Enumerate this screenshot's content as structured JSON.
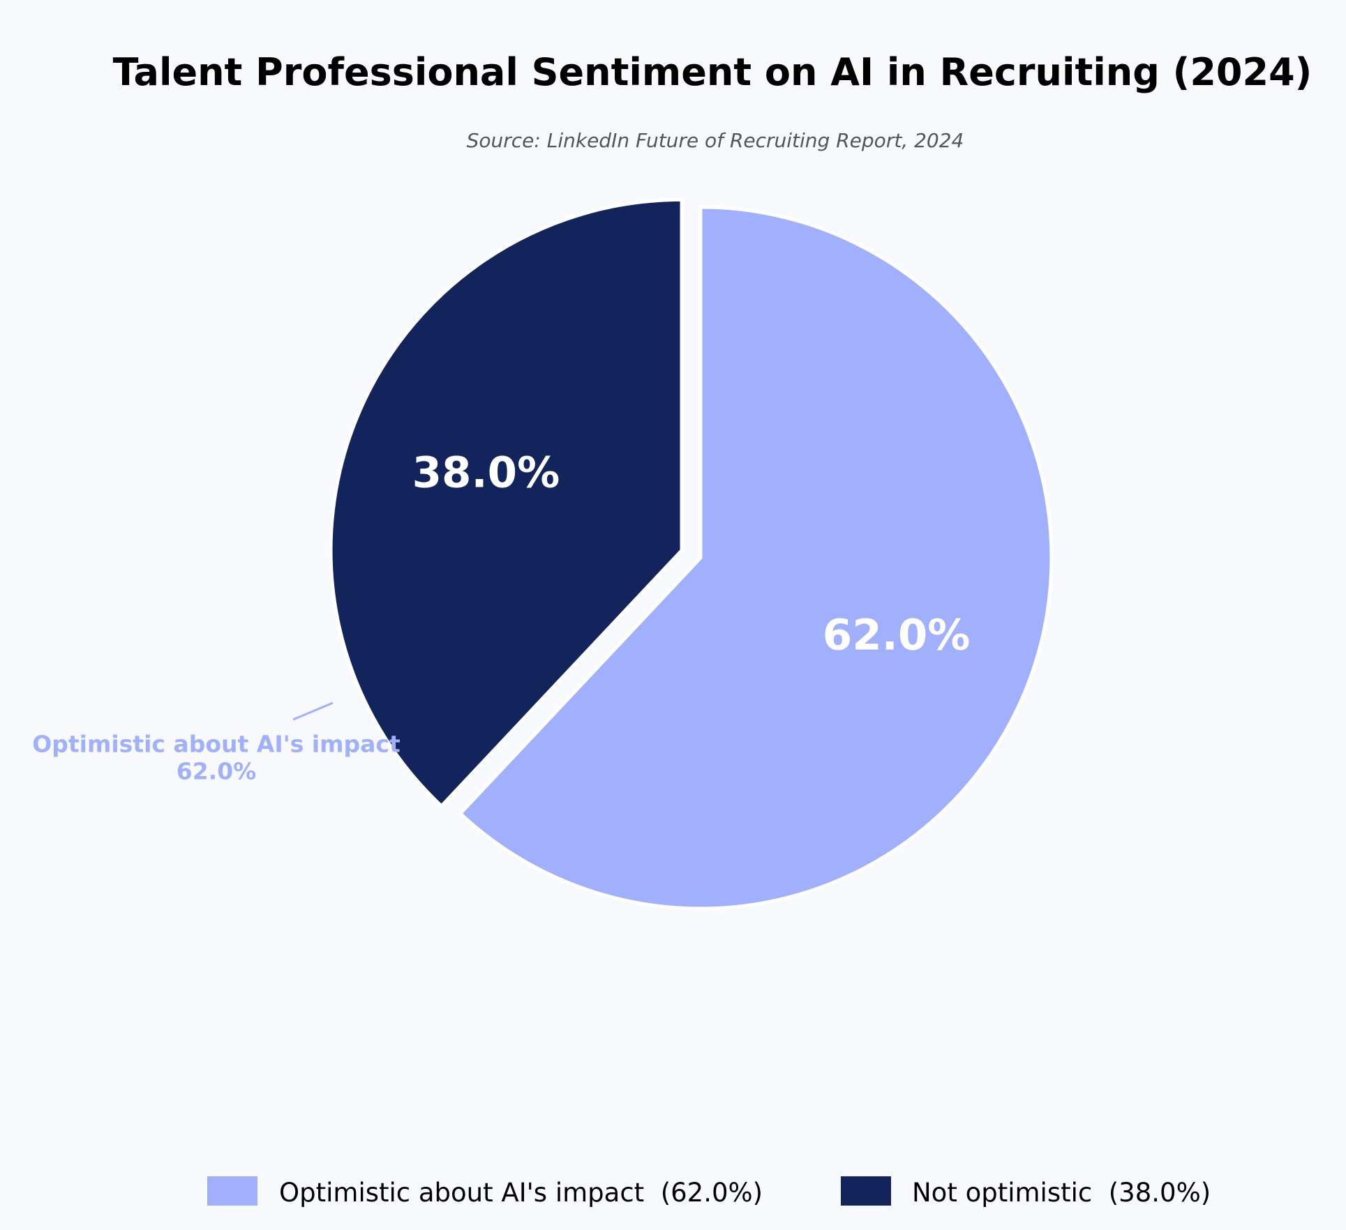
{
  "chart_data": {
    "type": "pie",
    "title": "Talent Professional Sentiment on AI in Recruiting (2024)",
    "subtitle": "Source: LinkedIn Future of Recruiting Report, 2024",
    "start_angle_deg": 90,
    "direction": "clockwise",
    "slices": [
      {
        "label": "Optimistic about AI's impact",
        "value": 62.0,
        "pct_label": "62.0%",
        "legend_label": "Optimistic about AI's impact  (62.0%)",
        "callout_lines": [
          "Optimistic about AI's impact",
          "62.0%"
        ],
        "color": "#a0b0fd",
        "exploded": false
      },
      {
        "label": "Not optimistic",
        "value": 38.0,
        "pct_label": "38.0%",
        "legend_label": "Not optimistic  (38.0%)",
        "color": "#13235b",
        "exploded": true
      }
    ],
    "legend_position": "bottom-center",
    "grid": false
  },
  "background_color": "#f7f9fc",
  "slice_edge_color": "#ffffff"
}
